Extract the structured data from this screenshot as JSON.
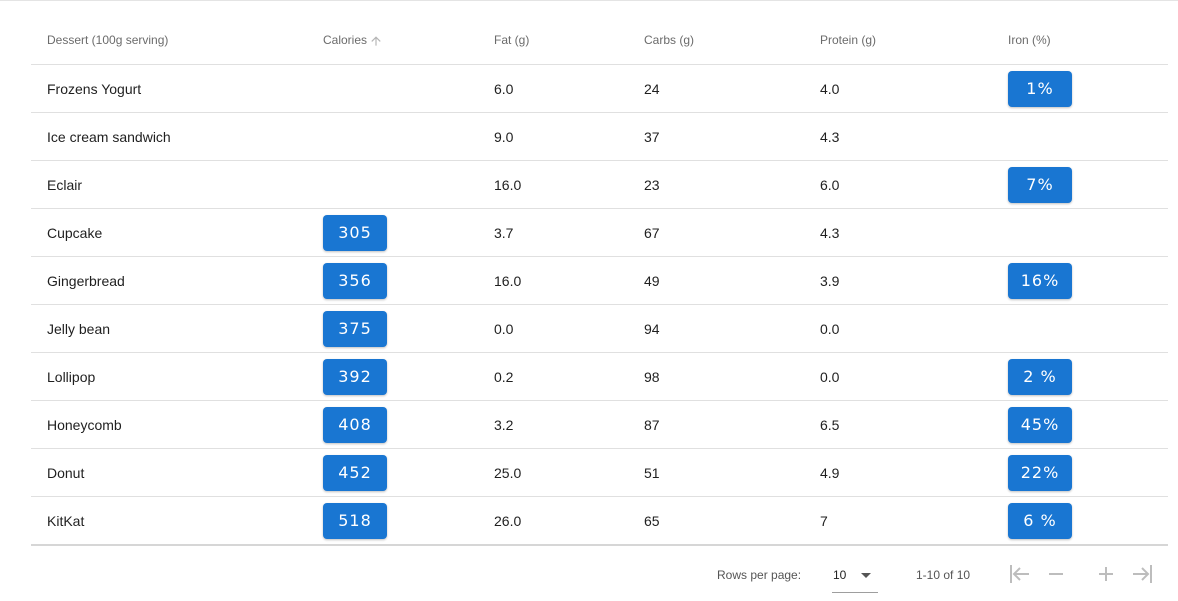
{
  "table": {
    "headers": {
      "name": "Dessert (100g serving)",
      "calories": "Calories",
      "fat": "Fat (g)",
      "carbs": "Carbs (g)",
      "protein": "Protein (g)",
      "iron": "Iron (%)"
    },
    "sort": {
      "column": "calories",
      "direction": "ascending",
      "icon": "arrow-up-icon"
    },
    "badge_color": "#1976d2",
    "rows": [
      {
        "name": "Frozens Yogurt",
        "calories": "",
        "fat": "6.0",
        "carbs": "24",
        "protein": "4.0",
        "iron": "1%"
      },
      {
        "name": "Ice cream sandwich",
        "calories": "",
        "fat": "9.0",
        "carbs": "37",
        "protein": "4.3",
        "iron": ""
      },
      {
        "name": "Eclair",
        "calories": "",
        "fat": "16.0",
        "carbs": "23",
        "protein": "6.0",
        "iron": "7%"
      },
      {
        "name": "Cupcake",
        "calories": "305",
        "fat": "3.7",
        "carbs": "67",
        "protein": "4.3",
        "iron": ""
      },
      {
        "name": "Gingerbread",
        "calories": "356",
        "fat": "16.0",
        "carbs": "49",
        "protein": "3.9",
        "iron": "16%"
      },
      {
        "name": "Jelly bean",
        "calories": "375",
        "fat": "0.0",
        "carbs": "94",
        "protein": "0.0",
        "iron": ""
      },
      {
        "name": "Lollipop",
        "calories": "392",
        "fat": "0.2",
        "carbs": "98",
        "protein": "0.0",
        "iron": "2 %"
      },
      {
        "name": "Honeycomb",
        "calories": "408",
        "fat": "3.2",
        "carbs": "87",
        "protein": "6.5",
        "iron": "45%"
      },
      {
        "name": "Donut",
        "calories": "452",
        "fat": "25.0",
        "carbs": "51",
        "protein": "4.9",
        "iron": "22%"
      },
      {
        "name": "KitKat",
        "calories": "518",
        "fat": "26.0",
        "carbs": "65",
        "protein": "7",
        "iron": "6 %"
      }
    ]
  },
  "pagination": {
    "rows_per_page_label": "Rows per page:",
    "rows_per_page_value": "10",
    "range_text": "1-10 of 10",
    "buttons": {
      "first": "first-page-icon",
      "prev": "minus-icon",
      "next": "plus-icon",
      "last": "last-page-icon"
    }
  }
}
